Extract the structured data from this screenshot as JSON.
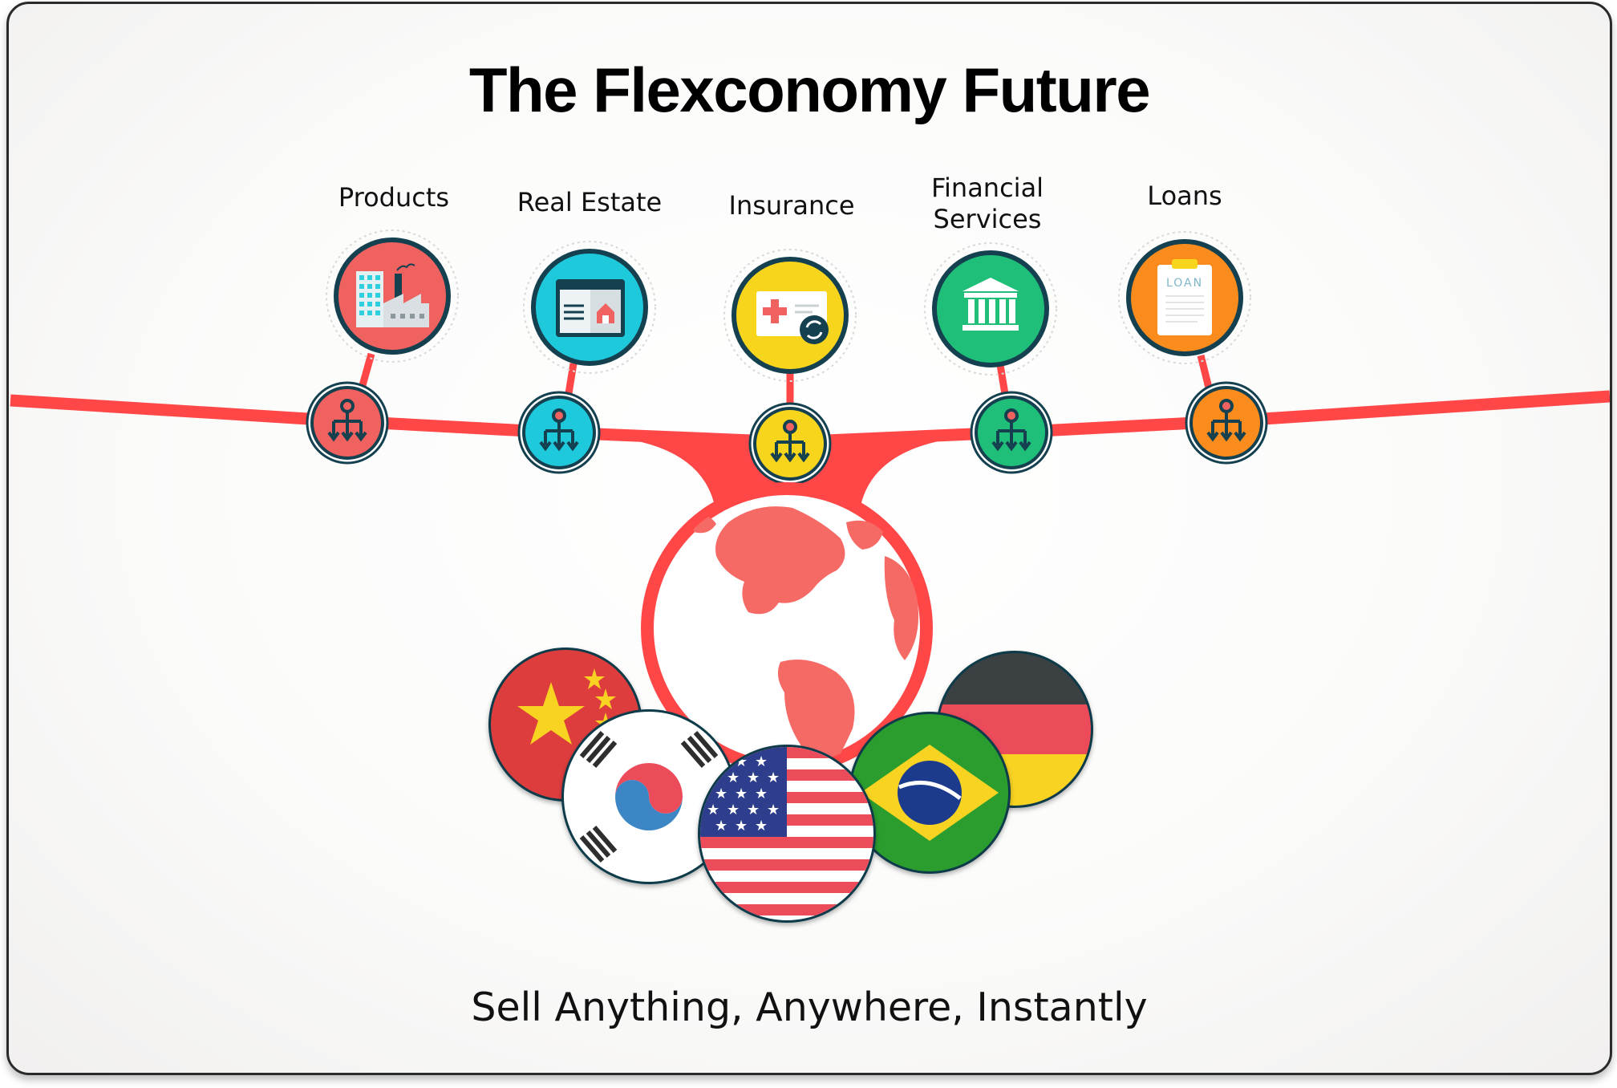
{
  "title": "The Flexconomy Future",
  "tagline": "Sell Anything, Anywhere, Instantly",
  "categories": [
    {
      "label": "Products",
      "icon": "factory-icon",
      "color": "#F0625F"
    },
    {
      "label": "Real Estate",
      "icon": "house-listing-icon",
      "color": "#1FC9DC"
    },
    {
      "label": "Insurance",
      "icon": "insurance-card-icon",
      "color": "#F7D51C"
    },
    {
      "label": "Financial Services",
      "icon": "bank-icon",
      "color": "#1FBF79"
    },
    {
      "label": "Loans",
      "icon": "loan-document-icon",
      "color": "#FA8C1E"
    }
  ],
  "loan_doc_text": "LOAN",
  "hub": {
    "icon": "globe-icon",
    "line_color": "#FF4747"
  },
  "flags": [
    "China",
    "South Korea",
    "United States",
    "Brazil",
    "Germany"
  ]
}
